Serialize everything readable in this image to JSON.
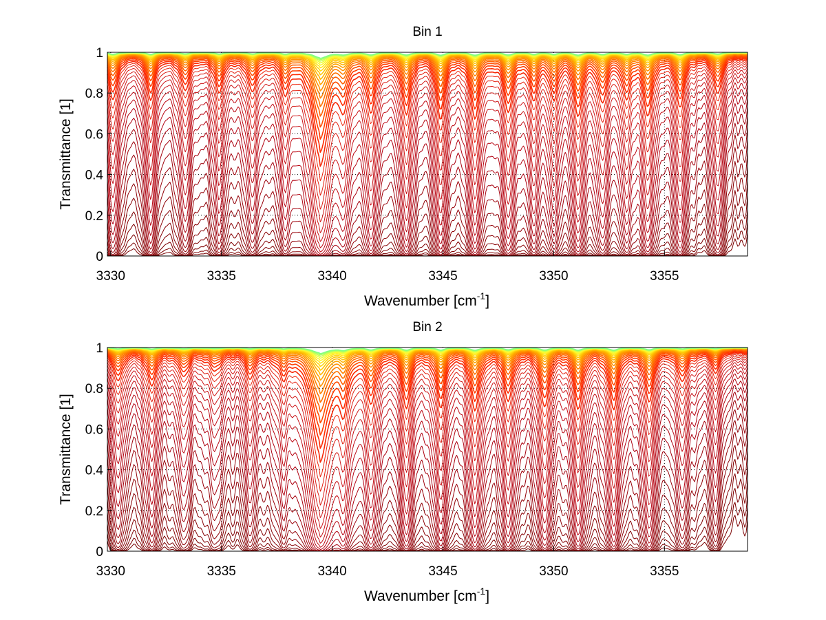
{
  "chart_data": [
    {
      "type": "line",
      "title": "Bin 1",
      "xlabel": "Wavenumber [cm",
      "xlabel_sup": "-1",
      "xlabel_end": "]",
      "ylabel": "Transmittance [1]",
      "xlim": [
        3329.85,
        3358.75
      ],
      "ylim": [
        0,
        1
      ],
      "xticks": [
        3330,
        3335,
        3340,
        3345,
        3350,
        3355
      ],
      "xtick_labels": [
        "3330",
        "3335",
        "3340",
        "3345",
        "3350",
        "3355"
      ],
      "yticks": [
        0,
        0.2,
        0.4,
        0.6,
        0.8,
        1
      ],
      "ytick_labels": [
        "0",
        "0.2",
        "0.4",
        "0.6",
        "0.8",
        "1"
      ],
      "grid": true,
      "grid_style": "dotted",
      "series_count": 40,
      "colormap": [
        "#7a0000",
        "#b00010",
        "#d21a1a",
        "#ff2a00",
        "#ff7a00",
        "#ffc000",
        "#ffff30",
        "#80ff80"
      ],
      "absorption_lines": [
        {
          "center": 3330.1,
          "depth": 1.3,
          "width": 0.22
        },
        {
          "center": 3331.8,
          "depth": 1.4,
          "width": 0.2
        },
        {
          "center": 3333.35,
          "depth": 1.0,
          "width": 0.22
        },
        {
          "center": 3334.9,
          "depth": 1.1,
          "width": 0.22
        },
        {
          "center": 3336.4,
          "depth": 1.0,
          "width": 0.22
        },
        {
          "center": 3337.9,
          "depth": 1.05,
          "width": 0.2
        },
        {
          "center": 3339.45,
          "depth": 4.0,
          "width": 0.35
        },
        {
          "center": 3340.5,
          "depth": 1.3,
          "width": 0.22
        },
        {
          "center": 3341.75,
          "depth": 1.6,
          "width": 0.22
        },
        {
          "center": 3343.35,
          "depth": 1.9,
          "width": 0.2
        },
        {
          "center": 3344.9,
          "depth": 2.1,
          "width": 0.2
        },
        {
          "center": 3346.45,
          "depth": 2.0,
          "width": 0.22
        },
        {
          "center": 3347.95,
          "depth": 1.8,
          "width": 0.22
        },
        {
          "center": 3349.1,
          "depth": 1.3,
          "width": 0.2
        },
        {
          "center": 3350.0,
          "depth": 1.2,
          "width": 0.2
        },
        {
          "center": 3351.1,
          "depth": 1.9,
          "width": 0.22
        },
        {
          "center": 3352.2,
          "depth": 1.4,
          "width": 0.22
        },
        {
          "center": 3353.3,
          "depth": 1.2,
          "width": 0.22
        },
        {
          "center": 3354.25,
          "depth": 1.9,
          "width": 0.22
        },
        {
          "center": 3355.7,
          "depth": 1.6,
          "width": 0.22
        },
        {
          "center": 3357.4,
          "depth": 1.1,
          "width": 0.22
        }
      ]
    },
    {
      "type": "line",
      "title": "Bin 2",
      "xlabel": "Wavenumber [cm",
      "xlabel_sup": "-1",
      "xlabel_end": "]",
      "ylabel": "Transmittance [1]",
      "xlim": [
        3329.85,
        3358.75
      ],
      "ylim": [
        0,
        1
      ],
      "xticks": [
        3330,
        3335,
        3340,
        3345,
        3350,
        3355
      ],
      "xtick_labels": [
        "3330",
        "3335",
        "3340",
        "3345",
        "3350",
        "3355"
      ],
      "yticks": [
        0,
        0.2,
        0.4,
        0.6,
        0.8,
        1
      ],
      "ytick_labels": [
        "0",
        "0.2",
        "0.4",
        "0.6",
        "0.8",
        "1"
      ],
      "grid": true,
      "grid_style": "dotted",
      "series_count": 40,
      "colormap": [
        "#7a0000",
        "#b00010",
        "#d21a1a",
        "#ff2a00",
        "#ff7a00",
        "#ffc000",
        "#ffff30",
        "#80ff80"
      ],
      "absorption_lines": [
        {
          "center": 3330.35,
          "depth": 0.9,
          "width": 0.22
        },
        {
          "center": 3331.85,
          "depth": 1.1,
          "width": 0.22
        },
        {
          "center": 3333.3,
          "depth": 0.7,
          "width": 0.25
        },
        {
          "center": 3334.7,
          "depth": 0.55,
          "width": 0.28
        },
        {
          "center": 3336.3,
          "depth": 0.75,
          "width": 0.22
        },
        {
          "center": 3337.8,
          "depth": 0.65,
          "width": 0.2
        },
        {
          "center": 3339.45,
          "depth": 4.0,
          "width": 0.4
        },
        {
          "center": 3340.5,
          "depth": 1.6,
          "width": 0.22
        },
        {
          "center": 3341.75,
          "depth": 1.5,
          "width": 0.22
        },
        {
          "center": 3343.35,
          "depth": 1.8,
          "width": 0.2
        },
        {
          "center": 3344.9,
          "depth": 1.7,
          "width": 0.22
        },
        {
          "center": 3346.45,
          "depth": 1.9,
          "width": 0.22
        },
        {
          "center": 3347.95,
          "depth": 1.6,
          "width": 0.22
        },
        {
          "center": 3349.6,
          "depth": 1.8,
          "width": 0.22
        },
        {
          "center": 3351.1,
          "depth": 1.9,
          "width": 0.22
        },
        {
          "center": 3352.7,
          "depth": 1.9,
          "width": 0.22
        },
        {
          "center": 3354.3,
          "depth": 1.6,
          "width": 0.22
        },
        {
          "center": 3355.8,
          "depth": 0.9,
          "width": 0.22
        },
        {
          "center": 3357.3,
          "depth": 0.6,
          "width": 0.22
        }
      ]
    }
  ]
}
